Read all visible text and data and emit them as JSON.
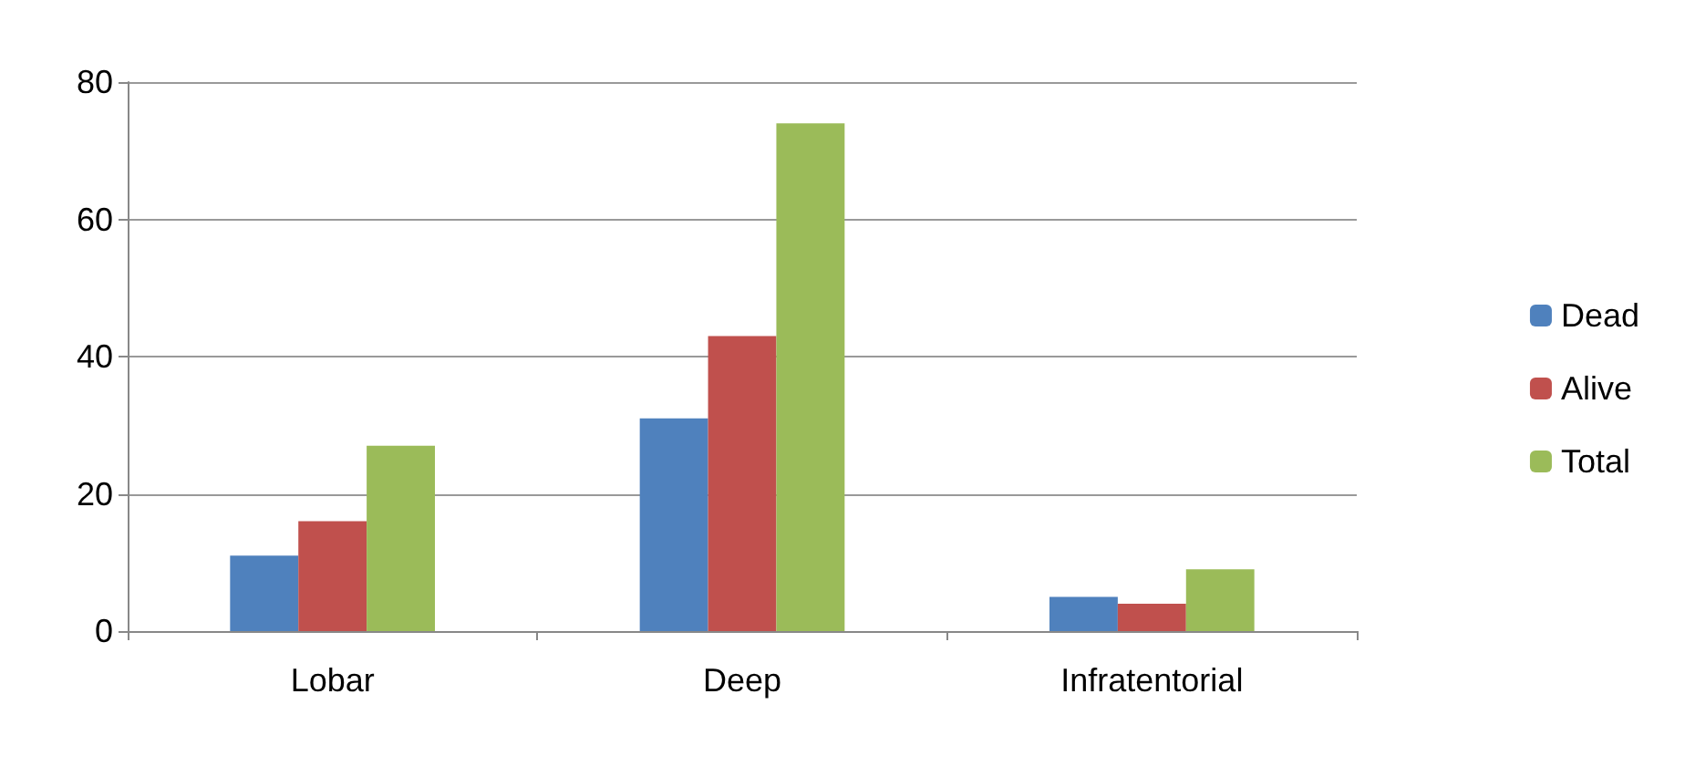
{
  "chart_data": {
    "type": "bar",
    "categories": [
      "Lobar",
      "Deep",
      "Infratentorial"
    ],
    "series": [
      {
        "name": "Dead",
        "color": "#4f81bd",
        "values": [
          11,
          31,
          5
        ]
      },
      {
        "name": "Alive",
        "color": "#c0504d",
        "values": [
          16,
          43,
          4
        ]
      },
      {
        "name": "Total",
        "color": "#9bbb59",
        "values": [
          27,
          74,
          9
        ]
      }
    ],
    "ylim": [
      0,
      80
    ],
    "yticks": [
      0,
      20,
      40,
      60,
      80
    ],
    "grid": "y",
    "legend": "right"
  }
}
